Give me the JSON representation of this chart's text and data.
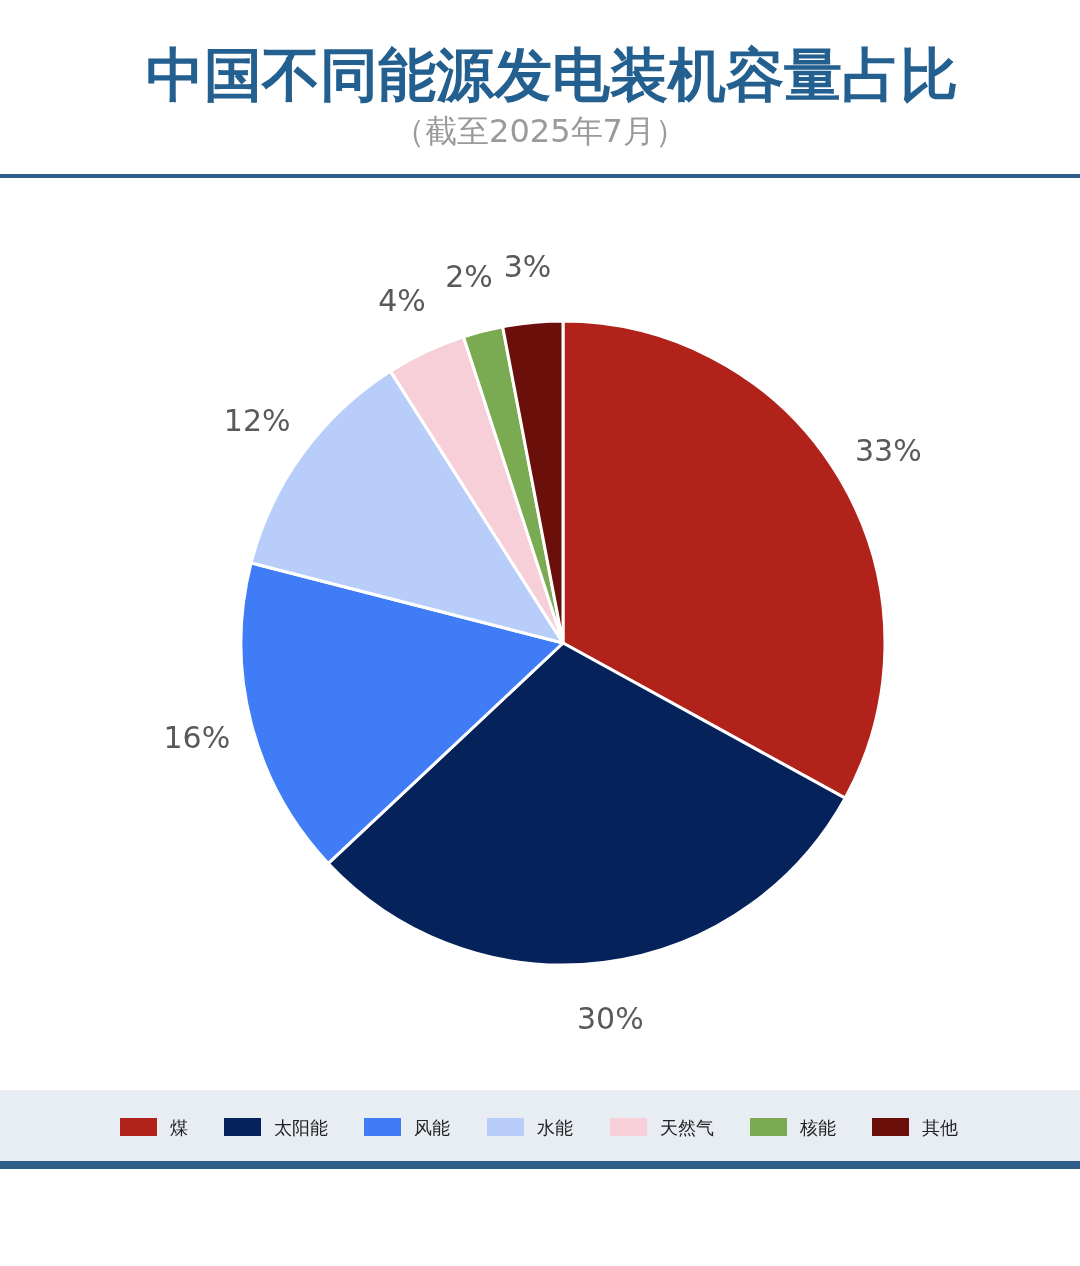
{
  "chart_data": {
    "type": "pie",
    "title": "中国不同能源发电装机容量占比",
    "subtitle": "（截至2025年7月）",
    "categories": [
      "煤",
      "太阳能",
      "风能",
      "水能",
      "天然气",
      "核能",
      "其他"
    ],
    "values": [
      33,
      30,
      16,
      12,
      4,
      2,
      3
    ],
    "value_labels": [
      "33%",
      "30%",
      "16%",
      "12%",
      "4%",
      "2%",
      "3%"
    ],
    "colors": [
      "#b0221a",
      "#06225a",
      "#3f7cf5",
      "#b8cdfa",
      "#f6cfd8",
      "#7aaa52",
      "#6b0f0a"
    ],
    "legend": "bottom"
  }
}
